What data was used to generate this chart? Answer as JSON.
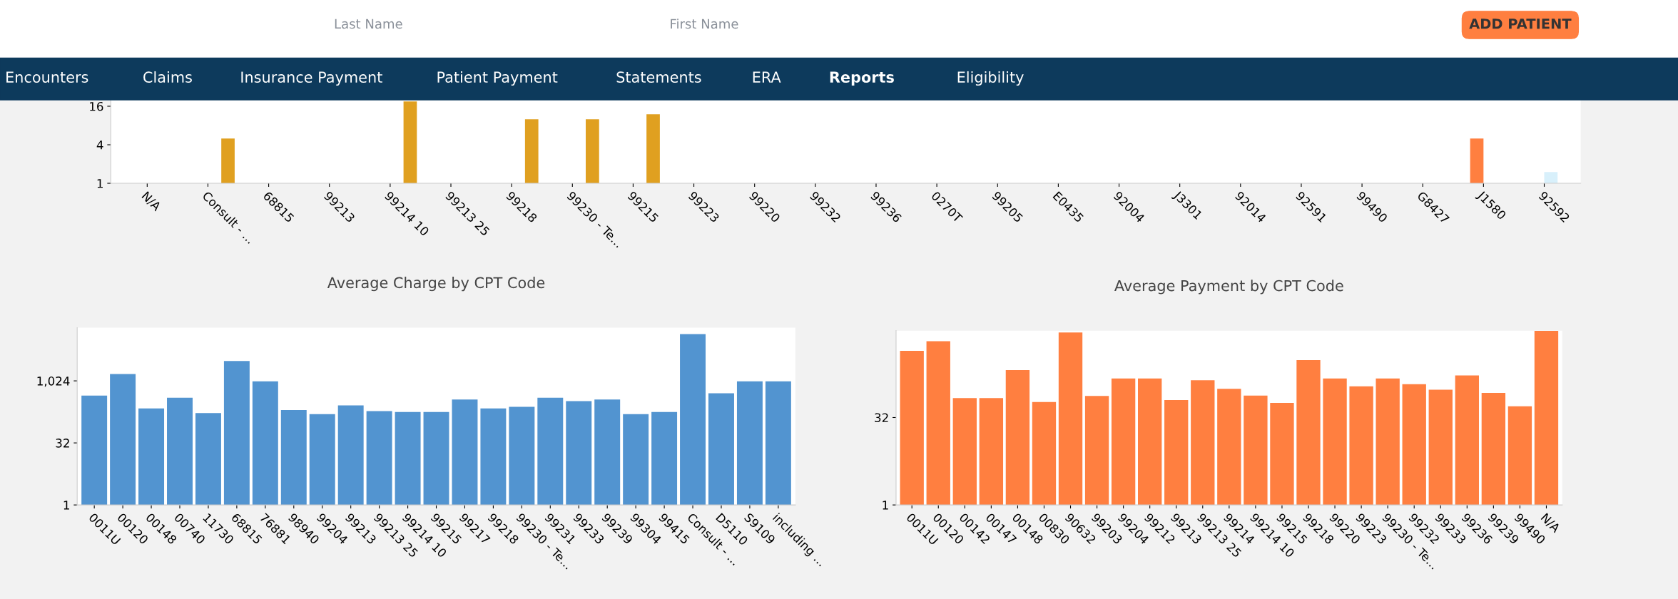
{
  "chart_data": [
    {
      "type": "bar",
      "log": "y",
      "ylim": [
        1,
        20
      ],
      "yticks": [
        1,
        4,
        16
      ],
      "grid": false,
      "categories": [
        "N/A",
        "Consult - ...",
        "68815",
        "99213",
        "99214 10",
        "99213 25",
        "99218",
        "99230 - Te...",
        "99215",
        "99223",
        "99220",
        "99232",
        "99236",
        "0270T",
        "99205",
        "E0435",
        "92004",
        "J3301",
        "92014",
        "92591",
        "99490",
        "G8427",
        "J1580",
        "92592"
      ],
      "series": [
        {
          "color": "#5294d0",
          "values": [
            null,
            null,
            null,
            null,
            null,
            null,
            null,
            null,
            null,
            null,
            null,
            null,
            null,
            null,
            null,
            null,
            null,
            null,
            null,
            null,
            null,
            null,
            null,
            null
          ]
        },
        {
          "color": "#ff7f40",
          "values": [
            null,
            null,
            null,
            null,
            null,
            null,
            null,
            null,
            null,
            null,
            null,
            null,
            null,
            null,
            null,
            null,
            null,
            null,
            null,
            null,
            null,
            null,
            5,
            null
          ]
        },
        {
          "color": "#d8f0fb",
          "values": [
            null,
            null,
            null,
            null,
            null,
            null,
            null,
            null,
            null,
            null,
            null,
            null,
            null,
            null,
            null,
            null,
            null,
            null,
            null,
            null,
            null,
            null,
            null,
            1.5
          ]
        },
        {
          "color": "#e0a020",
          "values": [
            null,
            5,
            null,
            null,
            19,
            null,
            10,
            10,
            12,
            null,
            null,
            null,
            null,
            null,
            null,
            null,
            null,
            null,
            null,
            null,
            null,
            null,
            null,
            null
          ]
        }
      ],
      "annotations": [
        "Last Name",
        "First Name",
        "ADD PATIENT",
        "Encounters",
        "Claims",
        "Insurance Payment",
        "Patient Payment",
        "Statements",
        "ERA",
        "Reports",
        "Eligibility"
      ]
    },
    {
      "type": "bar",
      "title": "Average Charge by CPT Code",
      "log": "y",
      "ylim": [
        1,
        20000
      ],
      "yticks": [
        1,
        32,
        {
          "value": 1024,
          "label": "1,024"
        }
      ],
      "grid": false,
      "categories": [
        "0011U",
        "00120",
        "00148",
        "00740",
        "11730",
        "68815",
        "76881",
        "98940",
        "99204",
        "99213",
        "99213 25",
        "99214 10",
        "99215",
        "99217",
        "99218",
        "99230 - Te...",
        "99231",
        "99233",
        "99239",
        "99304",
        "99415",
        "Consult - ...",
        "D5110",
        "S9109",
        "including ..."
      ],
      "series": [
        {
          "color": "#5294d0",
          "values": [
            450,
            1500,
            220,
            400,
            170,
            3100,
            1000,
            200,
            160,
            260,
            190,
            180,
            180,
            360,
            220,
            240,
            400,
            330,
            360,
            160,
            180,
            14000,
            510,
            1000,
            1000
          ]
        }
      ]
    },
    {
      "type": "bar",
      "title": "Average Payment by CPT Code",
      "log": "y",
      "ylim": [
        1,
        1000
      ],
      "yticks": [
        1,
        32
      ],
      "grid": false,
      "categories": [
        "0011U",
        "00120",
        "00142",
        "00147",
        "00148",
        "00830",
        "90632",
        "99203",
        "99204",
        "99212",
        "99213",
        "99213 25",
        "99214",
        "99214 10",
        "99215",
        "99218",
        "99220",
        "99223",
        "99230 - Te...",
        "99232",
        "99233",
        "99236",
        "99239",
        "99490",
        "N/A"
      ],
      "series": [
        {
          "color": "#ff7f40",
          "values": [
            450,
            660,
            69,
            69,
            210,
            59,
            930,
            75,
            150,
            150,
            64,
            140,
            100,
            76,
            57,
            310,
            150,
            110,
            150,
            120,
            96,
            170,
            85,
            50,
            990
          ]
        }
      ]
    }
  ]
}
